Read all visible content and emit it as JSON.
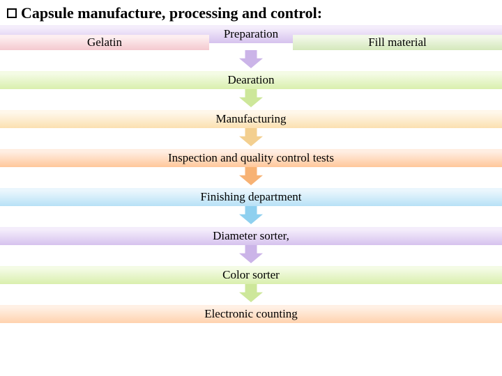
{
  "title": "Capsule manufacture, processing and control:",
  "sub_left": "Gelatin",
  "sub_right": "Fill material",
  "steps": [
    {
      "label": "Preparation",
      "grad_from": "#f4edfb",
      "grad_to": "#d6c2ee",
      "arrow_fill": "#cbb4e8"
    },
    {
      "label": "Dearation",
      "grad_from": "#f4fbe5",
      "grad_to": "#d9efad",
      "arrow_fill": "#cde79a"
    },
    {
      "label": "Manufacturing",
      "grad_from": "#fff7ea",
      "grad_to": "#fbe0b0",
      "arrow_fill": "#f3cf8f"
    },
    {
      "label": "Inspection and quality control tests",
      "grad_from": "#ffeee2",
      "grad_to": "#ffc79a",
      "arrow_fill": "#f7b274"
    },
    {
      "label": "Finishing department",
      "grad_from": "#eaf6fd",
      "grad_to": "#b7e1f6",
      "arrow_fill": "#8fd0ef"
    },
    {
      "label": "Diameter sorter,",
      "grad_from": "#f4edfb",
      "grad_to": "#d6c2ee",
      "arrow_fill": "#cbb4e8"
    },
    {
      "label": "Color sorter",
      "grad_from": "#f4fbe5",
      "grad_to": "#d9efad",
      "arrow_fill": "#cde79a"
    },
    {
      "label": "Electronic counting",
      "grad_from": "#fff0e4",
      "grad_to": "#ffd2ae",
      "arrow_fill": "#f7b88a"
    }
  ],
  "sub_left_grad": {
    "from": "#fdeef0",
    "to": "#f4c9cf"
  },
  "sub_right_grad": {
    "from": "#f2f8e8",
    "to": "#d4e8bb"
  },
  "arrow_w": 34,
  "arrow_h": 26
}
